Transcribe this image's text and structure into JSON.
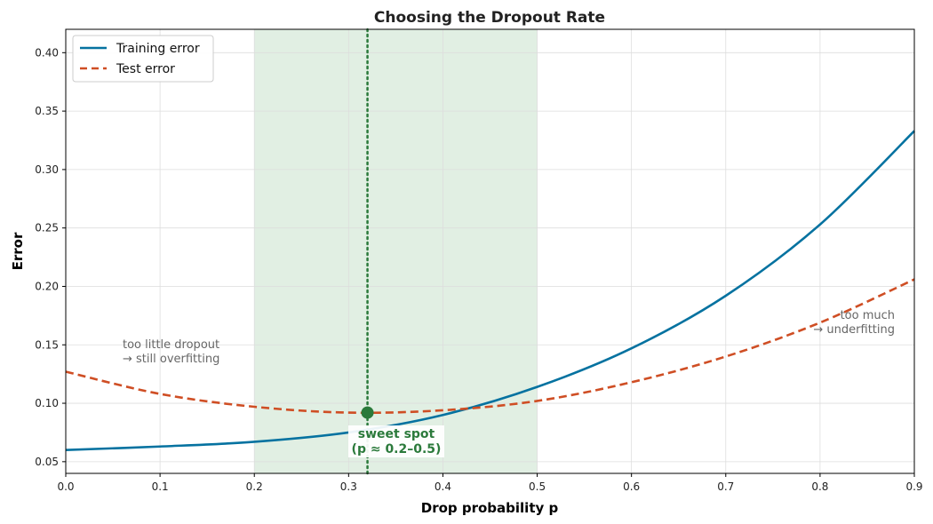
{
  "chart_data": {
    "type": "line",
    "title": "Choosing the Dropout Rate",
    "xlabel": "Drop probability p",
    "ylabel": "Error",
    "xlim": [
      0.0,
      0.9
    ],
    "ylim": [
      0.04,
      0.42
    ],
    "xticks": [
      "0.0",
      "0.1",
      "0.2",
      "0.3",
      "0.4",
      "0.5",
      "0.6",
      "0.7",
      "0.8",
      "0.9"
    ],
    "yticks": [
      "0.05",
      "0.10",
      "0.15",
      "0.20",
      "0.25",
      "0.30",
      "0.35",
      "0.40"
    ],
    "grid": true,
    "legend_position": "top-left",
    "x": [
      0.0,
      0.1,
      0.2,
      0.3,
      0.4,
      0.5,
      0.6,
      0.7,
      0.8,
      0.9
    ],
    "series": [
      {
        "name": "Training error",
        "style": "solid",
        "color": "#0572a0",
        "values": [
          0.06,
          0.063,
          0.067,
          0.075,
          0.09,
          0.114,
          0.147,
          0.192,
          0.253,
          0.333
        ]
      },
      {
        "name": "Test error",
        "style": "dashed",
        "color": "#cf4e24",
        "values": [
          0.127,
          0.108,
          0.097,
          0.092,
          0.094,
          0.102,
          0.118,
          0.14,
          0.169,
          0.206
        ]
      }
    ],
    "shaded_region": {
      "x_start": 0.2,
      "x_end": 0.5,
      "color": "#e1efe3"
    },
    "vertical_line": {
      "x": 0.32,
      "color": "#2b7a3b",
      "style": "dotted"
    },
    "marker": {
      "x": 0.32,
      "y": 0.092,
      "color": "#2b7a3b"
    },
    "annotations": {
      "sweet_spot": {
        "line1": "sweet spot",
        "line2": "(p ≈ 0.2–0.5)"
      },
      "too_little": {
        "line1": "too little dropout",
        "line2": "→ still overfitting"
      },
      "too_much": {
        "line1": "too much",
        "line2": "→ underfitting"
      }
    }
  }
}
